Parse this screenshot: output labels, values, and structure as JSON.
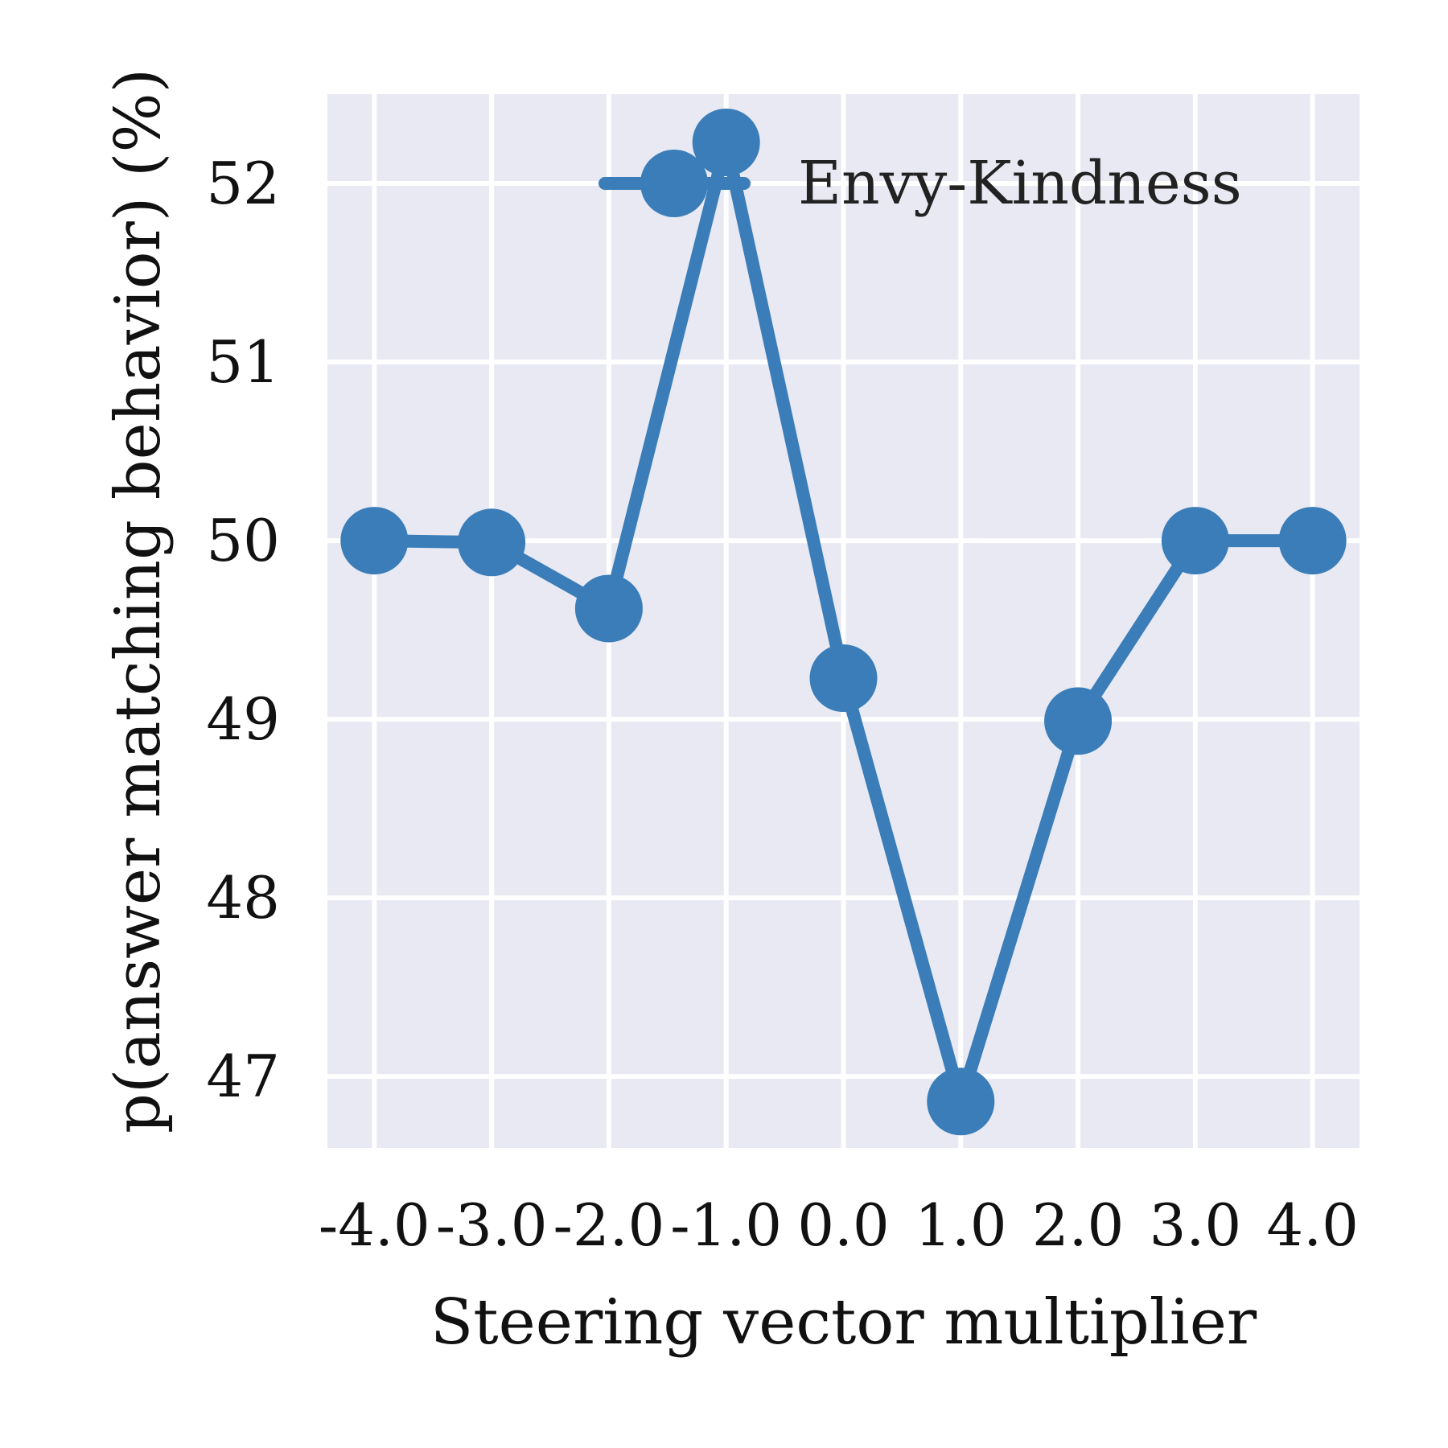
{
  "chart_data": {
    "type": "line",
    "title": "",
    "xlabel": "Steering vector multiplier",
    "ylabel": "p(answer matching behavior) (%)",
    "x": [
      -4.0,
      -3.0,
      -2.0,
      -1.0,
      0.0,
      1.0,
      2.0,
      3.0,
      4.0
    ],
    "x_tick_labels": [
      "-4.0",
      "-3.0",
      "-2.0",
      "-1.0",
      "0.0",
      "1.0",
      "2.0",
      "3.0",
      "4.0"
    ],
    "y_ticks": [
      47,
      48,
      49,
      50,
      51,
      52
    ],
    "y_tick_labels": [
      "47",
      "48",
      "49",
      "50",
      "51",
      "52"
    ],
    "xlim": [
      -4.4,
      4.4
    ],
    "ylim": [
      46.6,
      52.5
    ],
    "grid": true,
    "legend_position": "top-right",
    "series": [
      {
        "name": "Envy-Kindness",
        "color": "#3a7db8",
        "values": [
          50.0,
          49.99,
          49.62,
          52.23,
          49.23,
          46.86,
          48.99,
          50.0,
          50.0
        ]
      }
    ]
  },
  "colors": {
    "plot_background": "#e8e9f2",
    "grid": "#ffffff",
    "text": "#111111"
  }
}
